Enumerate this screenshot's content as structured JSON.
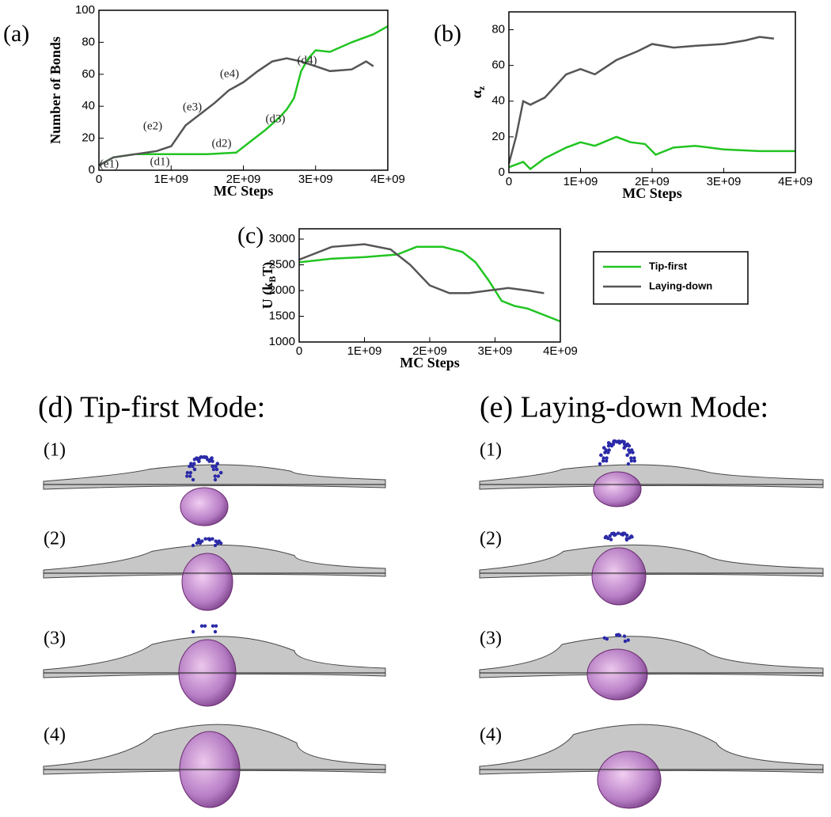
{
  "chart_data": [
    {
      "type": "line",
      "panel": "(a)",
      "xlabel": "MC Steps",
      "ylabel": "Number of Bonds",
      "xlim": [
        0,
        4000000000
      ],
      "ylim": [
        0,
        100
      ],
      "xticks": [
        0,
        {
          "value": 1000000000,
          "label": "1E+09"
        },
        {
          "value": 2000000000,
          "label": "2E+09"
        },
        {
          "value": 3000000000,
          "label": "3E+09"
        },
        {
          "value": 4000000000,
          "label": "4E+09"
        }
      ],
      "yticks": [
        0,
        20,
        40,
        60,
        80,
        100
      ],
      "annotations": [
        "(e1)",
        "(e2)",
        "(e3)",
        "(e4)",
        "(d1)",
        "(d2)",
        "(d3)",
        "(d4)"
      ],
      "series": [
        {
          "color": "#22c422",
          "x": [
            0,
            200000000,
            500000000,
            1000000000,
            1500000000,
            1900000000,
            2100000000,
            2300000000,
            2500000000,
            2600000000,
            2700000000,
            2800000000,
            2900000000,
            3000000000,
            3200000000,
            3500000000,
            3800000000,
            4000000000
          ],
          "values": [
            3,
            8,
            10,
            10,
            10,
            11,
            18,
            25,
            33,
            38,
            45,
            62,
            70,
            75,
            74,
            80,
            85,
            90
          ]
        },
        {
          "color": "#555555",
          "x": [
            0,
            200000000,
            500000000,
            800000000,
            1000000000,
            1200000000,
            1400000000,
            1600000000,
            1800000000,
            2000000000,
            2200000000,
            2400000000,
            2600000000,
            2800000000,
            3000000000,
            3200000000,
            3500000000,
            3700000000,
            3800000000
          ],
          "values": [
            3,
            8,
            10,
            12,
            15,
            28,
            35,
            42,
            50,
            55,
            62,
            68,
            70,
            68,
            65,
            62,
            63,
            68,
            65
          ]
        }
      ]
    },
    {
      "type": "line",
      "panel": "(b)",
      "xlabel": "MC Steps",
      "ylabel": "α",
      "ylabel_subscript": "z",
      "xlim": [
        0,
        4000000000
      ],
      "ylim": [
        0,
        90
      ],
      "xticks": [
        0,
        {
          "value": 1000000000,
          "label": "1E+09"
        },
        {
          "value": 2000000000,
          "label": "2E+09"
        },
        {
          "value": 3000000000,
          "label": "3E+09"
        },
        {
          "value": 4000000000,
          "label": "4E+09"
        }
      ],
      "yticks": [
        0,
        20,
        40,
        60,
        80
      ],
      "series": [
        {
          "color": "#22c422",
          "x": [
            0,
            200000000,
            300000000,
            500000000,
            800000000,
            1000000000,
            1200000000,
            1500000000,
            1700000000,
            1900000000,
            2050000000,
            2300000000,
            2600000000,
            3000000000,
            3500000000,
            4000000000
          ],
          "values": [
            3,
            6,
            2,
            8,
            14,
            17,
            15,
            20,
            17,
            16,
            10,
            14,
            15,
            13,
            12,
            12
          ]
        },
        {
          "color": "#555555",
          "x": [
            0,
            100000000,
            200000000,
            300000000,
            500000000,
            800000000,
            1000000000,
            1200000000,
            1500000000,
            1800000000,
            2000000000,
            2300000000,
            2600000000,
            3000000000,
            3300000000,
            3500000000,
            3700000000
          ],
          "values": [
            5,
            20,
            40,
            38,
            42,
            55,
            58,
            55,
            63,
            68,
            72,
            70,
            71,
            72,
            74,
            76,
            75
          ]
        }
      ]
    },
    {
      "type": "line",
      "panel": "(c)",
      "xlabel": "MC Steps",
      "ylabel": "U (k",
      "ylabel_subscript": "B",
      "ylabel_end": "T)",
      "xlim": [
        0,
        4000000000
      ],
      "ylim": [
        1000,
        3200
      ],
      "xticks": [
        0,
        {
          "value": 1000000000,
          "label": "1E+09"
        },
        {
          "value": 2000000000,
          "label": "2E+09"
        },
        {
          "value": 3000000000,
          "label": "3E+09"
        },
        {
          "value": 4000000000,
          "label": "4E+09"
        }
      ],
      "yticks": [
        1000,
        1500,
        2000,
        2500,
        3000
      ],
      "series": [
        {
          "name": "Tip-first",
          "color": "#22c422",
          "x": [
            0,
            500000000,
            1000000000,
            1500000000,
            1800000000,
            2200000000,
            2500000000,
            2700000000,
            2900000000,
            3100000000,
            3300000000,
            3500000000,
            3800000000,
            4000000000
          ],
          "values": [
            2550,
            2620,
            2650,
            2700,
            2850,
            2850,
            2750,
            2550,
            2200,
            1800,
            1700,
            1650,
            1500,
            1400
          ]
        },
        {
          "name": "Laying-down",
          "color": "#555555",
          "x": [
            0,
            500000000,
            1000000000,
            1400000000,
            1700000000,
            2000000000,
            2300000000,
            2600000000,
            2900000000,
            3200000000,
            3500000000,
            3750000000
          ],
          "values": [
            2600,
            2850,
            2900,
            2800,
            2500,
            2100,
            1950,
            1950,
            2000,
            2050,
            2000,
            1950
          ]
        }
      ]
    }
  ],
  "panels": [
    {
      "title": "(d) Tip-first Mode:",
      "rows": [
        "(1)",
        "(2)",
        "(3)",
        "(4)"
      ]
    },
    {
      "title": "(e) Laying-down Mode:",
      "rows": [
        "(1)",
        "(2)",
        "(3)",
        "(4)"
      ]
    }
  ]
}
